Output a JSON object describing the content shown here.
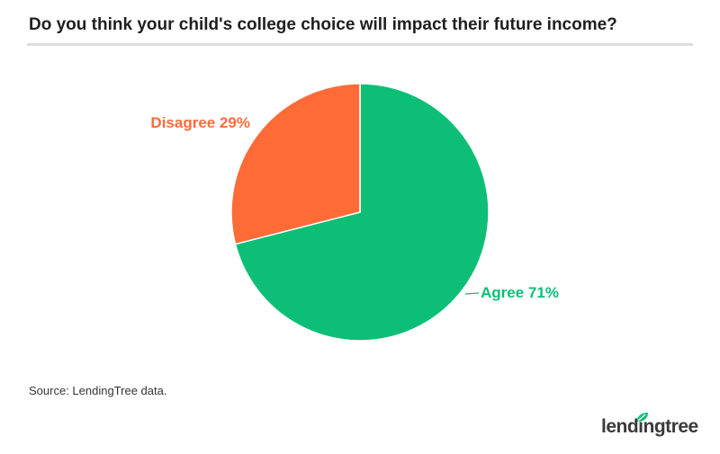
{
  "header": {
    "title": "Do you think your child's college choice will impact their future income?"
  },
  "chart_data": {
    "type": "pie",
    "slices": [
      {
        "label": "Agree",
        "value": 71,
        "display": "Agree 71%",
        "color": "#0dbf76"
      },
      {
        "label": "Disagree",
        "value": 29,
        "display": "Disagree 29%",
        "color": "#ff6b37"
      }
    ]
  },
  "footer": {
    "source": "Source: LendingTree data.",
    "logo_text": "lendingtree"
  },
  "colors": {
    "logo_leaf": "#0dbf76",
    "logo_text": "#3a3a3a"
  }
}
